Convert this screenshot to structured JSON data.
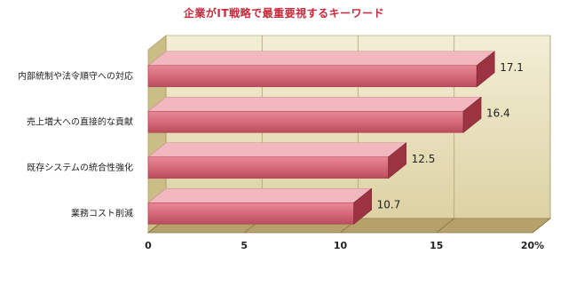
{
  "chart_data": {
    "type": "bar",
    "orientation": "horizontal",
    "title": "企業がIT戦略で最重要視するキーワード",
    "unit_note": "",
    "categories": [
      "内部統制や法令順守への対応",
      "売上増大への直接的な貢献",
      "既存システムの統合性強化",
      "業務コスト削減"
    ],
    "values": [
      17.1,
      16.4,
      12.5,
      10.7
    ],
    "value_labels": [
      "17.1",
      "16.4",
      "12.5",
      "10.7"
    ],
    "xlim": [
      0,
      20
    ],
    "xticks": [
      0,
      5,
      10,
      15,
      20
    ],
    "xtick_labels": [
      "0",
      "5",
      "10",
      "15",
      "20%"
    ],
    "xlabel": "",
    "ylabel": "",
    "grid": true,
    "legend": "none",
    "colors": {
      "bar_front": "#d66a7a",
      "bar_top": "#f2b8c0",
      "bar_side": "#9c3340",
      "backdrop": "#e6ddb6",
      "floor": "#b7a16a",
      "title": "#c8283a"
    }
  }
}
